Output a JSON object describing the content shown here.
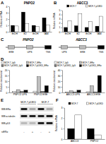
{
  "chart_data": [
    {
      "type": "bar",
      "annotations": [
        "A"
      ],
      "title": "PNPO2",
      "ylabel": "Relative mRNA",
      "categories": [
        "EtOH",
        "E2",
        "EtOH",
        "TAM"
      ],
      "series": [
        {
          "color": "#000000",
          "values": [
            1,
            3.1,
            1,
            2.2
          ]
        },
        {
          "color": "#ffffff",
          "values": [
            0.9,
            1.3,
            0.8,
            1.1
          ]
        }
      ],
      "ylim": [
        0,
        4
      ],
      "yticks": [
        0,
        1,
        2,
        3,
        4
      ]
    },
    {
      "type": "bar",
      "annotations": [
        "B"
      ],
      "title": "ABCC3",
      "ylabel": "Relative mRNA",
      "categories": [
        "EtOH",
        "E2",
        "EtOH",
        "TAM"
      ],
      "series": [
        {
          "name": "MCF-7",
          "color": "#000000",
          "values": [
            1,
            1.4,
            1,
            1.3
          ]
        },
        {
          "name": "MCF-7-p53KD",
          "color": "#ffffff",
          "values": [
            2.6,
            4.2,
            2.4,
            3.6
          ]
        }
      ],
      "ylim": [
        0,
        5
      ],
      "yticks": [
        0,
        1,
        2,
        3,
        4,
        5
      ],
      "legend": "top-right"
    },
    {
      "type": "bar",
      "annotations": [
        "D"
      ],
      "ylabel": "Relative enrichment",
      "categories": [
        "PNPO2 UPS",
        "PNPO2 ERE"
      ],
      "series": [
        {
          "name": "MCF-7_IgG",
          "color": "#ffffff",
          "values": [
            1,
            1.2
          ]
        },
        {
          "name": "MCF-7_ERα",
          "color": "#bfbfbf",
          "values": [
            2.5,
            14
          ]
        },
        {
          "name": "MCF-7-p53KD_IgG",
          "color": "#7f7f7f",
          "values": [
            1,
            1.1
          ]
        },
        {
          "name": "MCF-7-p53KD_ERα",
          "color": "#000000",
          "values": [
            2,
            6
          ]
        }
      ],
      "ylim": [
        0,
        20
      ],
      "yticks": [
        0,
        5,
        10,
        15,
        20
      ],
      "legend": "top-left"
    },
    {
      "type": "bar",
      "ylabel": "Relative enrichment",
      "categories": [
        "ABCC3 UPS",
        "ABCC3 ERE"
      ],
      "series": [
        {
          "name": "MCF-7_IgG",
          "color": "#ffffff",
          "values": [
            1,
            1.3
          ]
        },
        {
          "name": "MCF-7_ERα",
          "color": "#bfbfbf",
          "values": [
            3,
            12
          ]
        },
        {
          "name": "MCF-7-p53KD_IgG",
          "color": "#7f7f7f",
          "values": [
            1,
            1.1
          ]
        },
        {
          "name": "MCF-7-p53KD_ERα",
          "color": "#000000",
          "values": [
            4,
            30
          ]
        }
      ],
      "ylim": [
        0,
        40
      ],
      "yticks": [
        0,
        10,
        20,
        30,
        40
      ],
      "legend": "top-left"
    },
    {
      "type": "bar",
      "annotations": [
        "F"
      ],
      "ylabel": "Relative mRNA",
      "categories": [
        "ABCC3",
        "PNPO2"
      ],
      "series": [
        {
          "name": "MCF-7",
          "color": "#000000",
          "values": [
            1,
            1
          ]
        },
        {
          "name": "MCF-7-p53KD",
          "color": "#ffffff",
          "values": [
            2.3,
            0.4
          ]
        }
      ],
      "ylim": [
        0,
        3
      ],
      "yticks": [
        0,
        1,
        2,
        3
      ],
      "legend": "top-right"
    }
  ],
  "diagram": {
    "panel": "C",
    "genes": [
      {
        "name": "PNPO2",
        "elements": [
          "ERE",
          "UPS",
          "TSS"
        ]
      },
      {
        "name": "ABCC3",
        "elements": [
          "UPS",
          "ERE",
          "TSS"
        ]
      }
    ]
  },
  "blot": {
    "panel": "E",
    "header": [
      "MCF-7 p53KD",
      "MCF-7"
    ],
    "rows": [
      "WB:ERα",
      "WB:α-tubulin",
      "WB:p53"
    ],
    "treatment": {
      "label": "siERα",
      "lanes": [
        "-",
        "+",
        "-",
        "+"
      ]
    }
  }
}
